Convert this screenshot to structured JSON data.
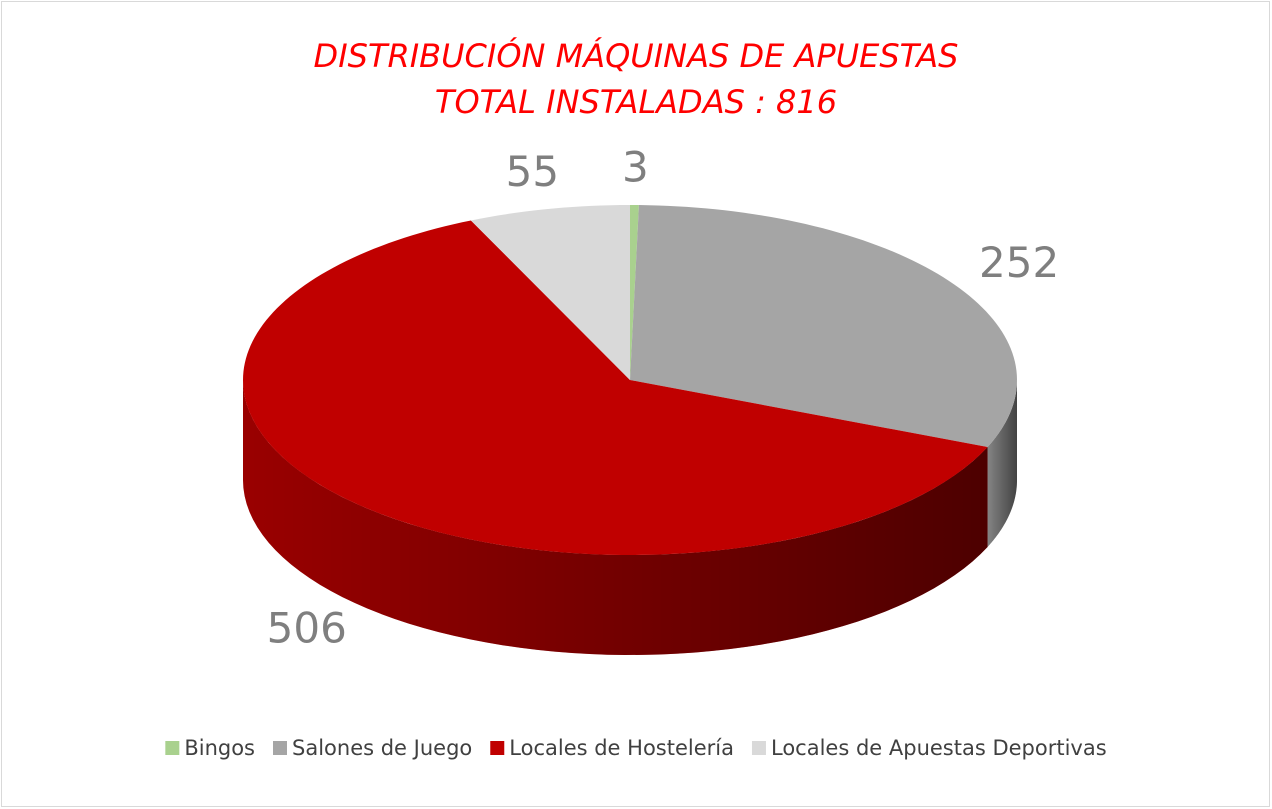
{
  "chart_data": {
    "type": "pie3d",
    "title": "DISTRIBUCIÓN MÁQUINAS DE APUESTAS",
    "subtitle": "TOTAL INSTALADAS :  816",
    "categories": [
      "Bingos",
      "Salones de Juego",
      "Locales de Hostelería",
      "Locales de Apuestas Deportivas"
    ],
    "values": [
      3,
      252,
      506,
      55
    ],
    "colors": [
      "#a9d18e",
      "#a5a5a5",
      "#c00000",
      "#d9d9d9"
    ],
    "legend": "bottom"
  }
}
